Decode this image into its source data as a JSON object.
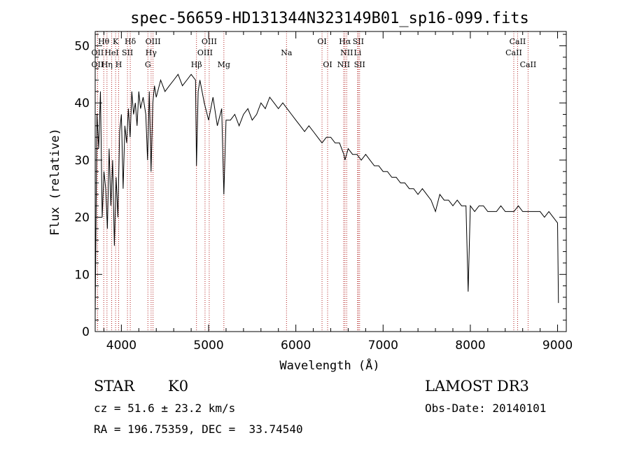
{
  "chart_data": {
    "type": "line",
    "title": "spec-56659-HD131344N323149B01_sp16-099.fits",
    "xlabel": "Wavelength (Å)",
    "ylabel": "Flux (relative)",
    "xlim": [
      3700,
      9100
    ],
    "ylim": [
      0,
      52.5
    ],
    "xticks": [
      4000,
      5000,
      6000,
      7000,
      8000,
      9000
    ],
    "yticks": [
      0,
      10,
      20,
      30,
      40,
      50
    ],
    "grid": false,
    "series": [
      {
        "name": "flux",
        "x": [
          3700,
          3720,
          3740,
          3760,
          3780,
          3800,
          3820,
          3840,
          3860,
          3880,
          3900,
          3920,
          3940,
          3960,
          3980,
          4000,
          4020,
          4040,
          4060,
          4080,
          4100,
          4120,
          4140,
          4160,
          4180,
          4200,
          4220,
          4250,
          4280,
          4300,
          4320,
          4340,
          4360,
          4380,
          4400,
          4450,
          4500,
          4550,
          4600,
          4650,
          4700,
          4750,
          4800,
          4850,
          4861,
          4880,
          4900,
          4950,
          5000,
          5050,
          5100,
          5150,
          5175,
          5200,
          5250,
          5300,
          5350,
          5400,
          5450,
          5500,
          5550,
          5600,
          5650,
          5700,
          5750,
          5800,
          5850,
          5900,
          5950,
          6000,
          6050,
          6100,
          6150,
          6200,
          6250,
          6300,
          6350,
          6400,
          6450,
          6500,
          6550,
          6563,
          6600,
          6650,
          6700,
          6750,
          6800,
          6850,
          6900,
          6950,
          7000,
          7050,
          7100,
          7150,
          7200,
          7250,
          7300,
          7350,
          7400,
          7450,
          7500,
          7550,
          7600,
          7650,
          7700,
          7750,
          7800,
          7850,
          7900,
          7950,
          7975,
          8000,
          8050,
          8100,
          8150,
          8200,
          8250,
          8300,
          8350,
          8400,
          8450,
          8500,
          8550,
          8600,
          8650,
          8700,
          8750,
          8800,
          8850,
          8900,
          8950,
          9000,
          9010
        ],
        "values": [
          3,
          38,
          32,
          42,
          20,
          28,
          25,
          18,
          32,
          22,
          30,
          15,
          27,
          20,
          35,
          38,
          25,
          36,
          33,
          39,
          34,
          42,
          38,
          40,
          36,
          42,
          39,
          41,
          38,
          30,
          42,
          28,
          40,
          43,
          41,
          44,
          42,
          43,
          44,
          45,
          43,
          44,
          45,
          44,
          29,
          42,
          44,
          40,
          37,
          41,
          36,
          39,
          24,
          37,
          37,
          38,
          36,
          38,
          39,
          37,
          38,
          40,
          39,
          41,
          40,
          39,
          40,
          39,
          38,
          37,
          36,
          35,
          36,
          35,
          34,
          33,
          34,
          34,
          33,
          33,
          31,
          30,
          32,
          31,
          31,
          30,
          31,
          30,
          29,
          29,
          28,
          28,
          27,
          27,
          26,
          26,
          25,
          25,
          24,
          25,
          24,
          23,
          21,
          24,
          23,
          23,
          22,
          23,
          22,
          22,
          7,
          22,
          21,
          22,
          22,
          21,
          21,
          21,
          22,
          21,
          21,
          21,
          22,
          21,
          21,
          21,
          21,
          21,
          20,
          21,
          20,
          19,
          5
        ]
      }
    ],
    "line_markers": [
      {
        "label": "Hθ",
        "x": 3798,
        "row": 0
      },
      {
        "label": "OII",
        "x": 3727,
        "row": 1
      },
      {
        "label": "OII",
        "x": 3727,
        "row": 2
      },
      {
        "label": "K",
        "x": 3934,
        "row": 0
      },
      {
        "label": "HeI",
        "x": 3889,
        "row": 1
      },
      {
        "label": "Hη",
        "x": 3835,
        "row": 2
      },
      {
        "label": "SII",
        "x": 4070,
        "row": 1
      },
      {
        "label": "H",
        "x": 3969,
        "row": 2
      },
      {
        "label": "Hδ",
        "x": 4102,
        "row": 0
      },
      {
        "label": "OIII",
        "x": 4363,
        "row": 0
      },
      {
        "label": "Hγ",
        "x": 4341,
        "row": 1
      },
      {
        "label": "G",
        "x": 4304,
        "row": 2
      },
      {
        "label": "Hβ",
        "x": 4861,
        "row": 2
      },
      {
        "label": "OIII",
        "x": 5007,
        "row": 0
      },
      {
        "label": "OIII",
        "x": 4959,
        "row": 1
      },
      {
        "label": "Mg",
        "x": 5175,
        "row": 2
      },
      {
        "label": "Na",
        "x": 5893,
        "row": 1
      },
      {
        "label": "OI",
        "x": 6300,
        "row": 0
      },
      {
        "label": "OI",
        "x": 6364,
        "row": 2
      },
      {
        "label": "Hα",
        "x": 6563,
        "row": 0
      },
      {
        "label": "SII",
        "x": 6716,
        "row": 0
      },
      {
        "label": "NII",
        "x": 6583,
        "row": 1
      },
      {
        "label": "Li",
        "x": 6708,
        "row": 1
      },
      {
        "label": "NII",
        "x": 6548,
        "row": 2
      },
      {
        "label": "SII",
        "x": 6731,
        "row": 2
      },
      {
        "label": "CaII",
        "x": 8542,
        "row": 0
      },
      {
        "label": "CaII",
        "x": 8498,
        "row": 1
      },
      {
        "label": "CaII",
        "x": 8662,
        "row": 2
      }
    ]
  },
  "info": {
    "class_label": "STAR",
    "subclass": "K0",
    "survey": "LAMOST DR3",
    "redshift": "cz = 51.6 ± 23.2 km/s",
    "obs_date": "Obs-Date: 20140101",
    "coords": "RA = 196.75359, DEC =  33.74540"
  },
  "colors": {
    "marker_line": "#b22222",
    "spectrum": "#000000"
  }
}
